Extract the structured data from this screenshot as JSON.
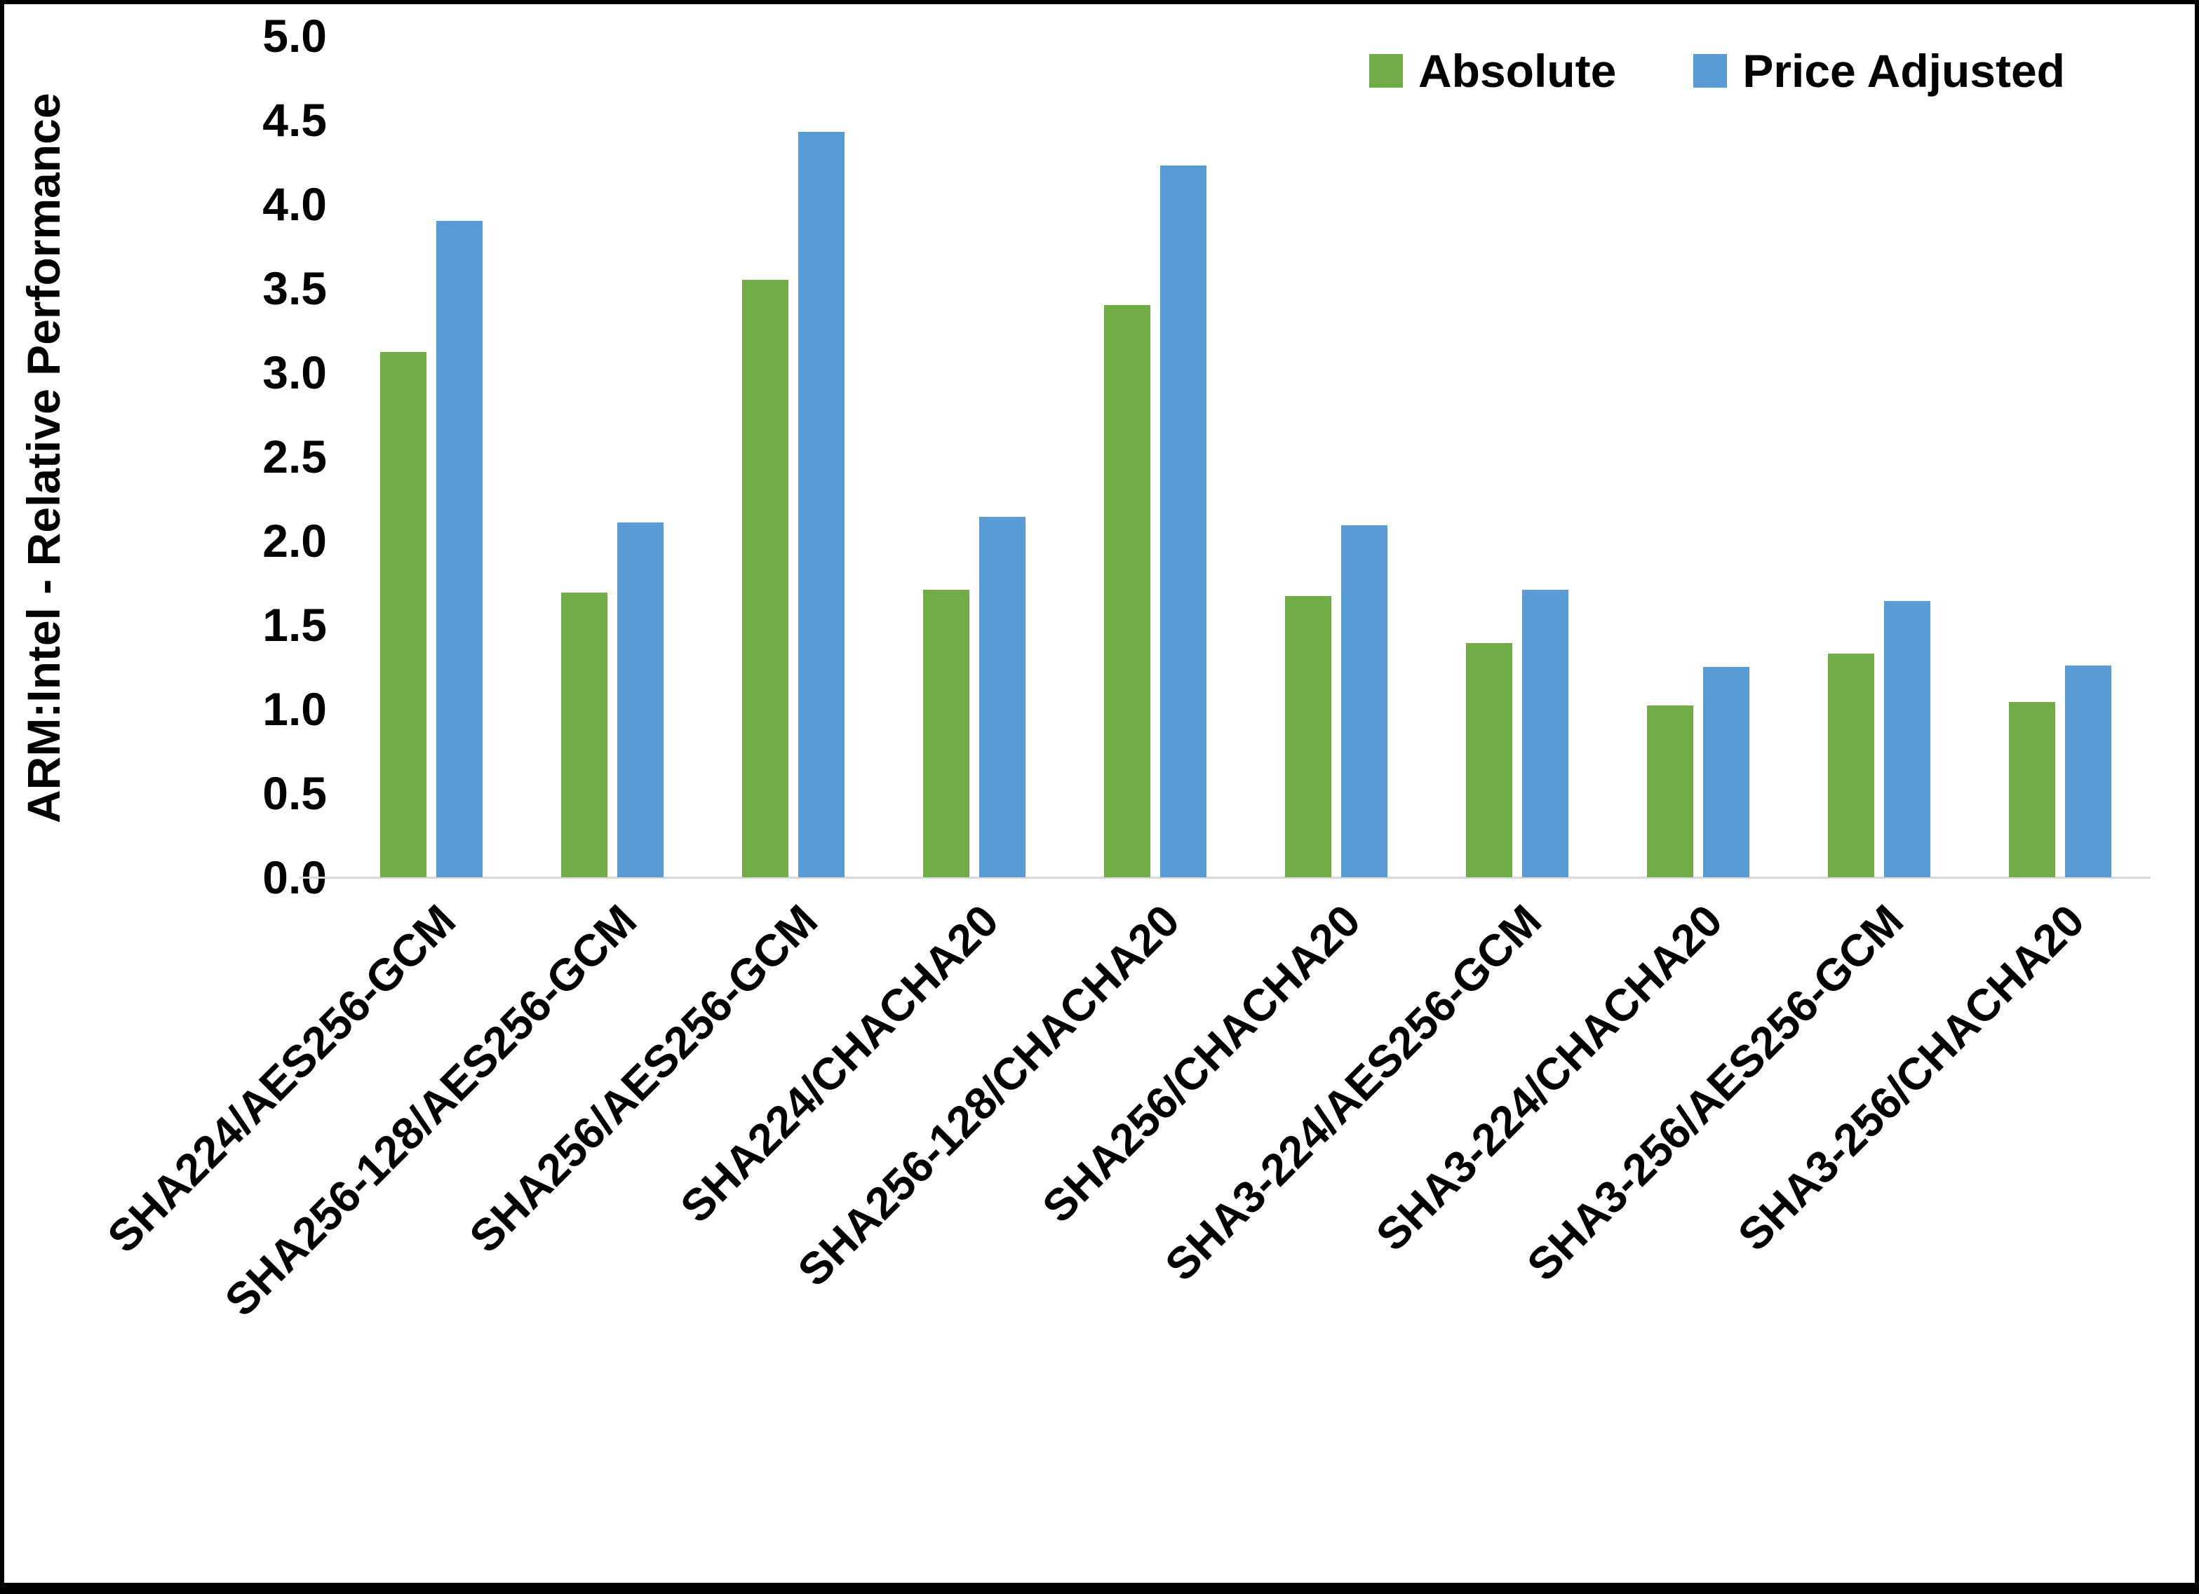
{
  "chart_data": {
    "type": "bar",
    "title": "",
    "ylabel": "ARM:Intel - Relative Performance",
    "xlabel": "",
    "ylim": [
      0,
      5
    ],
    "ytick_step": 0.5,
    "yticks": [
      "0.0",
      "0.5",
      "1.0",
      "1.5",
      "2.0",
      "2.5",
      "3.0",
      "3.5",
      "4.0",
      "4.5",
      "5.0"
    ],
    "grid": false,
    "legend_position": "top-right",
    "axis_line_color": "#d9d9d9",
    "text_color": "#000000",
    "background_color": "#ffffff",
    "categories": [
      "SHA224/AES256-GCM",
      "SHA256-128/AES256-GCM",
      "SHA256/AES256-GCM",
      "SHA224/CHACHA20",
      "SHA256-128/CHACHA20",
      "SHA256/CHACHA20",
      "SHA3-224/AES256-GCM",
      "SHA3-224/CHACHA20",
      "SHA3-256/AES256-GCM",
      "SHA3-256/CHACHA20"
    ],
    "series": [
      {
        "name": "Absolute",
        "color": "#70AD47",
        "values": [
          3.12,
          1.69,
          3.55,
          1.71,
          3.4,
          1.67,
          1.39,
          1.02,
          1.33,
          1.04
        ]
      },
      {
        "name": "Price Adjusted",
        "color": "#5B9BD5",
        "values": [
          3.9,
          2.11,
          4.43,
          2.14,
          4.23,
          2.09,
          1.71,
          1.25,
          1.64,
          1.26
        ]
      }
    ]
  }
}
